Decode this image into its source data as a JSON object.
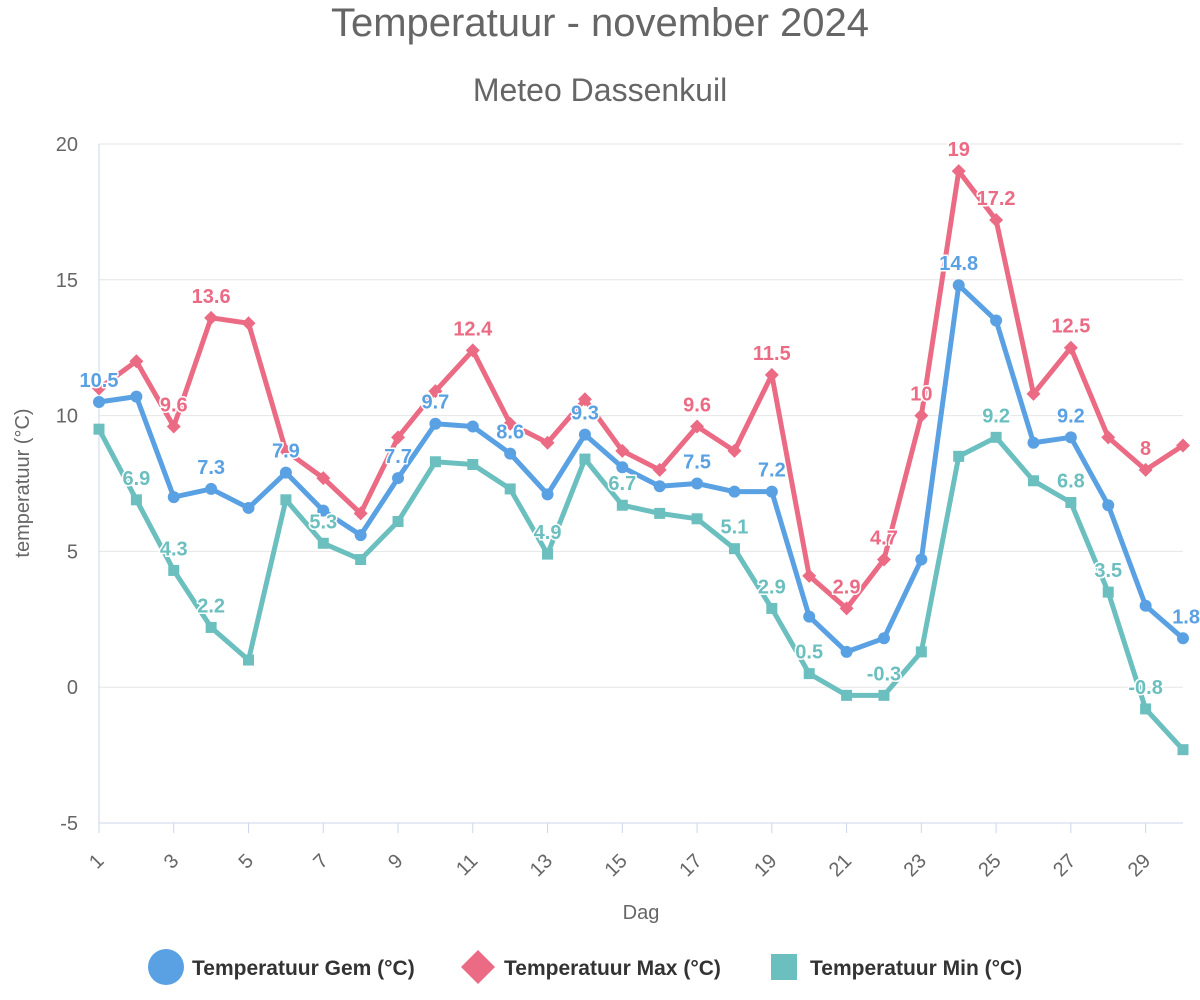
{
  "chart_data": {
    "type": "line",
    "title": "Temperatuur - november 2024",
    "subtitle": "Meteo Dassenkuil",
    "xlabel": "Dag",
    "ylabel": "temperatuur (°C)",
    "ylim": [
      -5,
      20
    ],
    "yticks": [
      "-5",
      "0",
      "5",
      "10",
      "15",
      "20"
    ],
    "xlim": [
      1,
      30
    ],
    "xticks": [
      "1",
      "3",
      "5",
      "7",
      "9",
      "11",
      "13",
      "15",
      "17",
      "19",
      "21",
      "23",
      "25",
      "27",
      "29"
    ],
    "grid": true,
    "legend_position": "bottom",
    "x": [
      1,
      2,
      3,
      4,
      5,
      6,
      7,
      8,
      9,
      10,
      11,
      12,
      13,
      14,
      15,
      16,
      17,
      18,
      19,
      20,
      21,
      22,
      23,
      24,
      25,
      26,
      27,
      28,
      29,
      30
    ],
    "series": [
      {
        "name": "Temperatuur Gem (°C)",
        "color": "#5aa1e3",
        "marker": "circle",
        "values": [
          10.5,
          10.7,
          7.0,
          7.3,
          6.6,
          7.9,
          6.5,
          5.6,
          7.7,
          9.7,
          9.6,
          8.6,
          7.1,
          9.3,
          8.1,
          7.4,
          7.5,
          7.2,
          7.2,
          2.6,
          1.3,
          1.8,
          4.7,
          14.8,
          13.5,
          9.0,
          9.2,
          6.7,
          3.0,
          1.8
        ],
        "labels": [
          {
            "x": 1,
            "text": "10.5"
          },
          {
            "x": 4,
            "text": "7.3"
          },
          {
            "x": 6,
            "text": "7.9"
          },
          {
            "x": 9,
            "text": "7.7"
          },
          {
            "x": 10,
            "text": "9.7"
          },
          {
            "x": 12,
            "text": "8.6"
          },
          {
            "x": 14,
            "text": "9.3"
          },
          {
            "x": 17,
            "text": "7.5"
          },
          {
            "x": 19,
            "text": "7.2"
          },
          {
            "x": 24,
            "text": "14.8"
          },
          {
            "x": 27,
            "text": "9.2"
          },
          {
            "x": 30,
            "text": "1.8"
          }
        ]
      },
      {
        "name": "Temperatuur Max (°C)",
        "color": "#eb6b85",
        "marker": "diamond",
        "values": [
          11.0,
          12.0,
          9.6,
          13.6,
          13.4,
          8.7,
          7.7,
          6.4,
          9.2,
          10.9,
          12.4,
          9.7,
          9.0,
          10.6,
          8.7,
          8.0,
          9.6,
          8.7,
          11.5,
          4.1,
          2.9,
          4.7,
          10.0,
          19.0,
          17.2,
          10.8,
          12.5,
          9.2,
          8.0,
          8.9
        ],
        "labels": [
          {
            "x": 3,
            "text": "9.6"
          },
          {
            "x": 4,
            "text": "13.6"
          },
          {
            "x": 11,
            "text": "12.4"
          },
          {
            "x": 17,
            "text": "9.6"
          },
          {
            "x": 19,
            "text": "11.5"
          },
          {
            "x": 21,
            "text": "2.9"
          },
          {
            "x": 22,
            "text": "4.7"
          },
          {
            "x": 23,
            "text": "10"
          },
          {
            "x": 24,
            "text": "19"
          },
          {
            "x": 25,
            "text": "17.2"
          },
          {
            "x": 27,
            "text": "12.5"
          },
          {
            "x": 29,
            "text": "8"
          }
        ]
      },
      {
        "name": "Temperatuur Min (°C)",
        "color": "#6cbfbf",
        "marker": "square",
        "values": [
          9.5,
          6.9,
          4.3,
          2.2,
          1.0,
          6.9,
          5.3,
          4.7,
          6.1,
          8.3,
          8.2,
          7.3,
          4.9,
          8.4,
          6.7,
          6.4,
          6.2,
          5.1,
          2.9,
          0.5,
          -0.3,
          -0.3,
          1.3,
          8.5,
          9.2,
          7.6,
          6.8,
          3.5,
          -0.8,
          -2.3
        ],
        "labels": [
          {
            "x": 2,
            "text": "6.9"
          },
          {
            "x": 3,
            "text": "4.3"
          },
          {
            "x": 4,
            "text": "2.2"
          },
          {
            "x": 7,
            "text": "5.3"
          },
          {
            "x": 13,
            "text": "4.9"
          },
          {
            "x": 15,
            "text": "6.7"
          },
          {
            "x": 18,
            "text": "5.1"
          },
          {
            "x": 19,
            "text": "2.9"
          },
          {
            "x": 20,
            "text": "0.5"
          },
          {
            "x": 22,
            "text": "-0.3"
          },
          {
            "x": 25,
            "text": "9.2"
          },
          {
            "x": 27,
            "text": "6.8"
          },
          {
            "x": 28,
            "text": "3.5"
          },
          {
            "x": 29,
            "text": "-0.8"
          }
        ]
      }
    ]
  }
}
